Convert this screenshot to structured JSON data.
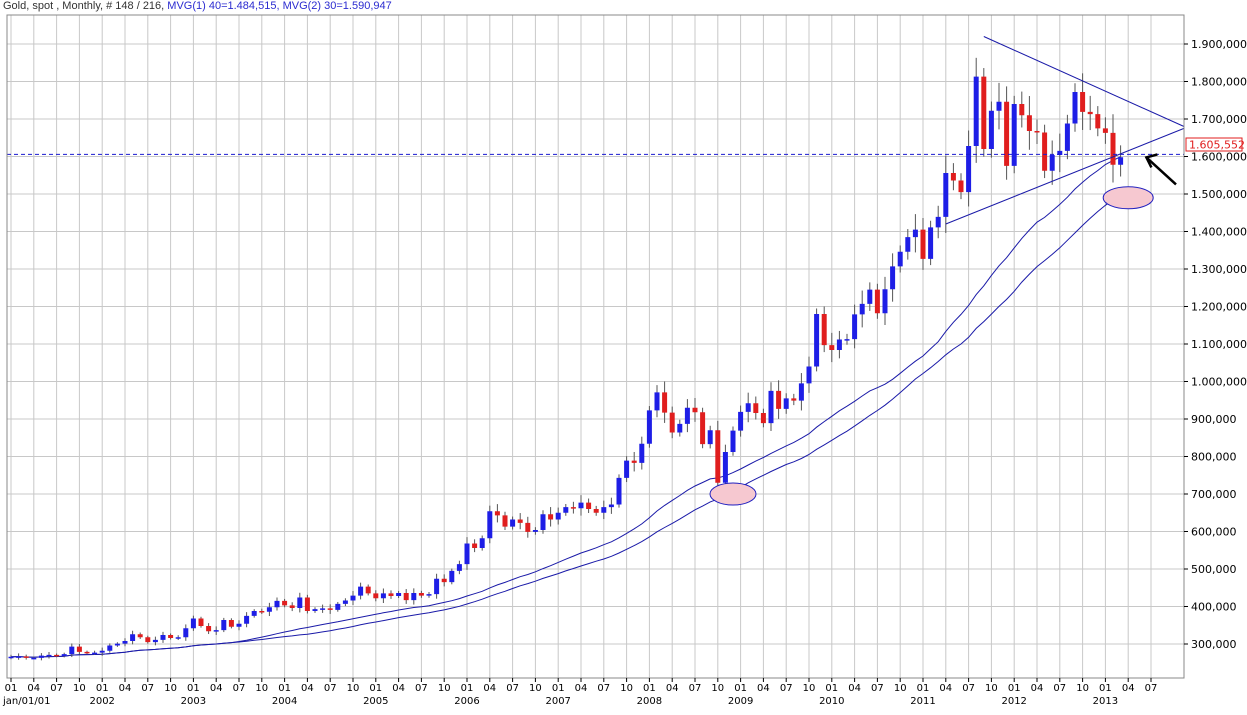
{
  "header": {
    "symbol": "Gold, spot , Monthly, # 148 / 216,",
    "mvg1": "MVG(1) 40=1.484,515,",
    "mvg2": "MVG(2) 30=1.590,947"
  },
  "price_label": "1.605,552",
  "colors": {
    "up": "#1e1ee6",
    "down": "#e01e1e",
    "line": "#1a1aa8",
    "grid": "#c8c8c8",
    "ellipse_fill": "#f6c8d0",
    "ellipse_stroke": "#2020c0"
  },
  "chart_data": {
    "type": "candlestick",
    "title": "Gold, spot, Monthly",
    "ylim": [
      250000,
      1930000
    ],
    "y_ticks": [
      "1.900,000",
      "1.800,000",
      "1.700,000",
      "1.600,000",
      "1.500,000",
      "1.400,000",
      "1.300,000",
      "1.200,000",
      "1.100,000",
      "1.000,000",
      "900,000",
      "800,000",
      "700,000",
      "600,000",
      "500,000",
      "400,000",
      "300,000"
    ],
    "y_tick_values": [
      1900000,
      1800000,
      1700000,
      1600000,
      1500000,
      1400000,
      1300000,
      1200000,
      1100000,
      1000000,
      900000,
      800000,
      700000,
      600000,
      500000,
      400000,
      300000
    ],
    "x_start": "2001-01",
    "x_end": "2013-09",
    "month_labels": [
      "01",
      "04",
      "07",
      "10"
    ],
    "year_labels": [
      "jan/01/01",
      "2002",
      "2003",
      "2004",
      "2005",
      "2006",
      "2007",
      "2008",
      "2009",
      "2010",
      "2011",
      "2012",
      "2013"
    ],
    "reference_line": 1605552,
    "moving_averages": [
      {
        "name": "MVG(1) 40",
        "last": 1484515
      },
      {
        "name": "MVG(2) 30",
        "last": 1590947
      }
    ],
    "close": [
      266,
      267,
      263,
      263,
      269,
      271,
      268,
      273,
      293,
      279,
      276,
      277,
      282,
      296,
      301,
      308,
      326,
      318,
      305,
      311,
      324,
      316,
      318,
      342,
      368,
      348,
      334,
      337,
      364,
      346,
      354,
      375,
      388,
      386,
      398,
      415,
      403,
      396,
      424,
      388,
      393,
      395,
      391,
      407,
      416,
      429,
      453,
      435,
      422,
      435,
      428,
      436,
      417,
      436,
      429,
      433,
      474,
      465,
      495,
      513,
      568,
      556,
      582,
      654,
      643,
      613,
      632,
      623,
      599,
      604,
      646,
      632,
      650,
      665,
      662,
      677,
      660,
      650,
      665,
      672,
      743,
      789,
      783,
      834,
      923,
      971,
      917,
      864,
      887,
      930,
      918,
      833,
      870,
      730,
      812,
      869,
      919,
      942,
      916,
      889,
      975,
      927,
      955,
      949,
      995,
      1040,
      1180,
      1097,
      1084,
      1112,
      1113,
      1179,
      1207,
      1245,
      1182,
      1246,
      1307,
      1346,
      1385,
      1405,
      1327,
      1411,
      1439,
      1556,
      1536,
      1505,
      1628,
      1813,
      1620,
      1722,
      1746,
      1575,
      1740,
      1710,
      1668,
      1664,
      1562,
      1604,
      1615,
      1688,
      1772,
      1719,
      1713,
      1675,
      1663,
      1578,
      1598
    ]
  }
}
